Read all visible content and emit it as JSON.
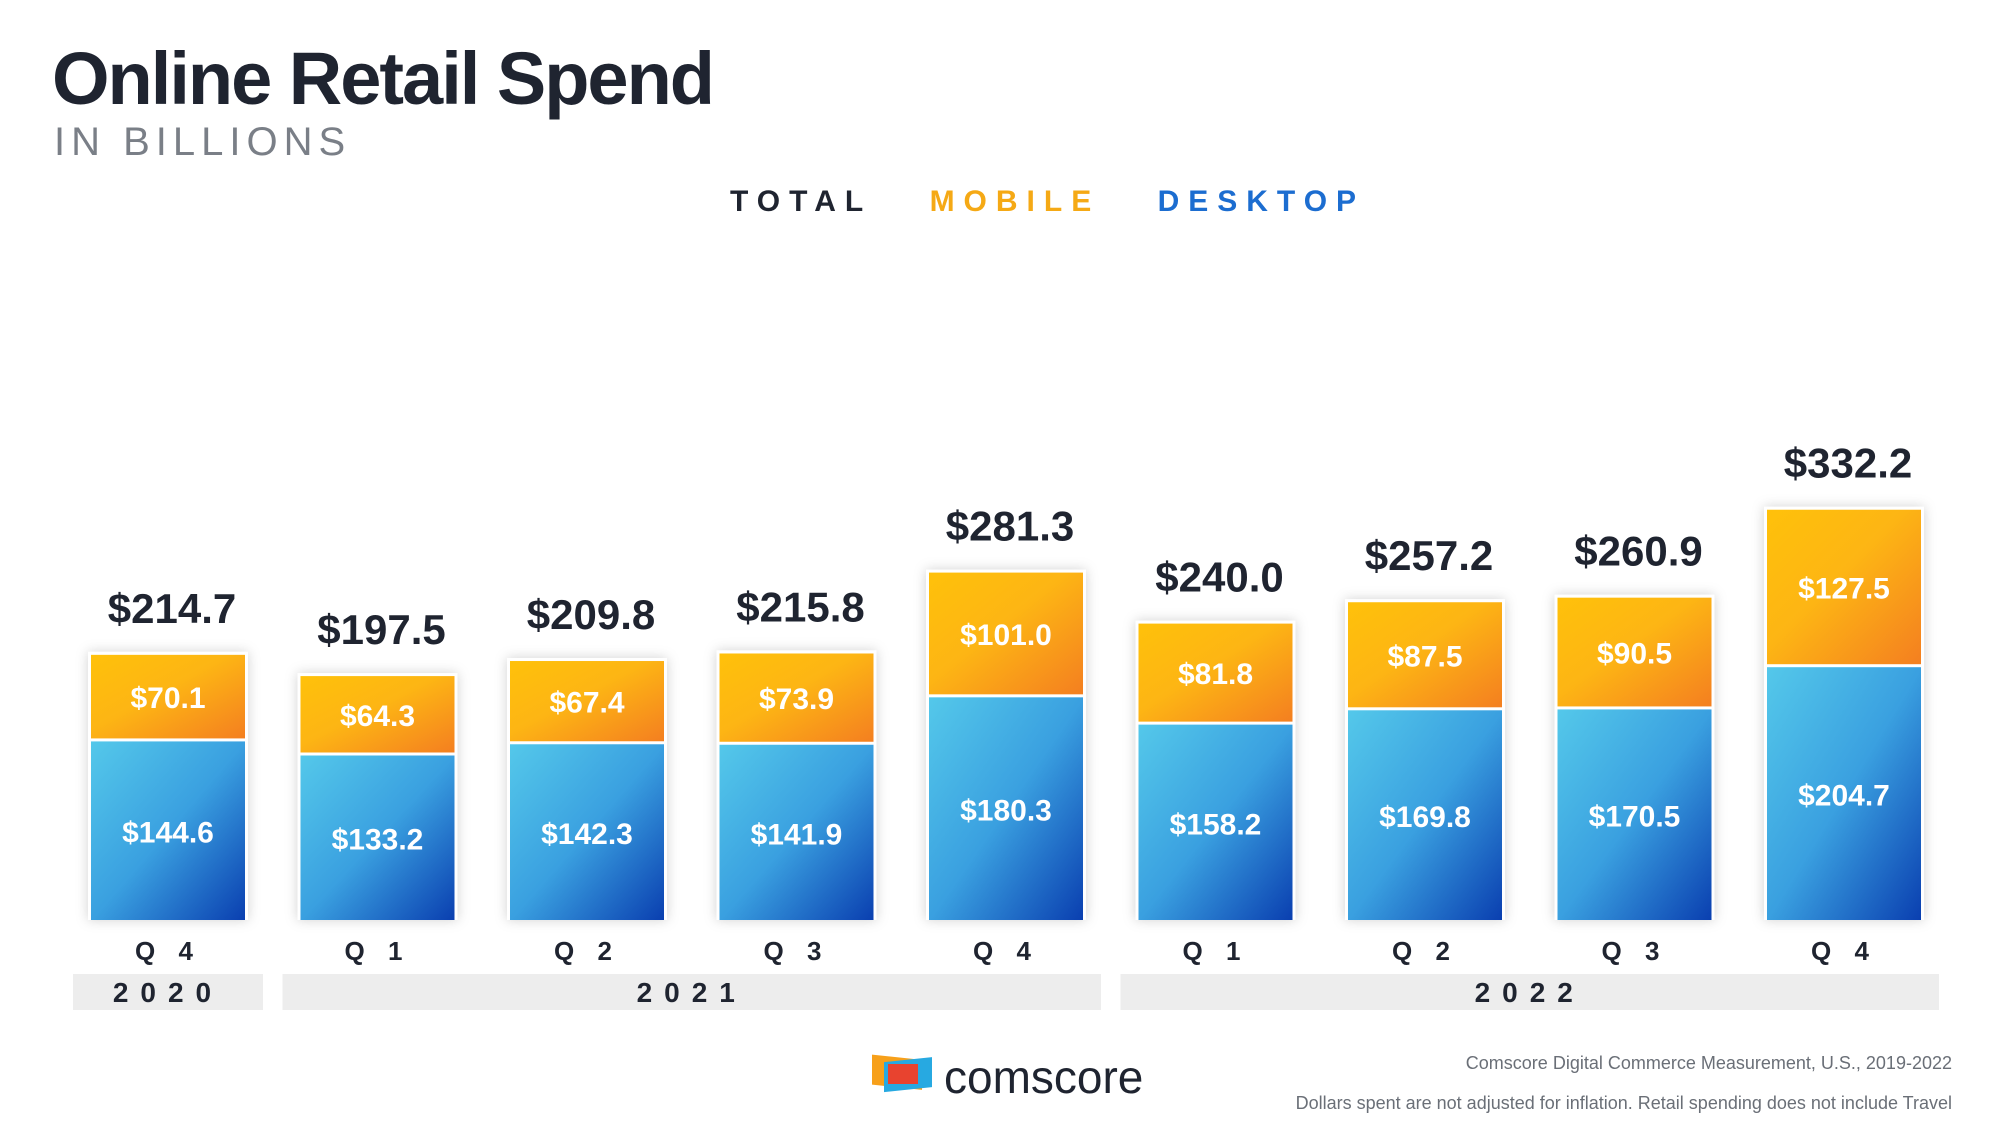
{
  "title": "Online Retail Spend",
  "subtitle": "IN BILLIONS",
  "legend": {
    "total": "TOTAL",
    "mobile": "MOBILE",
    "desktop": "DESKTOP"
  },
  "colors": {
    "mobile_top": "#ffc10a",
    "mobile_bottom": "#f47f20",
    "desktop_top": "#54c8ea",
    "desktop_bottom": "#0a3fb0",
    "total_label": "#1f2430",
    "year_band": "#ededed"
  },
  "chart_data": {
    "type": "bar",
    "stacked": true,
    "title": "Online Retail Spend",
    "subtitle": "IN BILLIONS",
    "ylim": [
      0,
      340
    ],
    "categories": [
      "Q 4",
      "Q 1",
      "Q 2",
      "Q 3",
      "Q 4",
      "Q 1",
      "Q 2",
      "Q 3",
      "Q 4"
    ],
    "years": [
      {
        "label": "2020",
        "quarters": 1
      },
      {
        "label": "2021",
        "quarters": 4
      },
      {
        "label": "2022",
        "quarters": 4
      }
    ],
    "series": [
      {
        "name": "DESKTOP",
        "values": [
          144.6,
          133.2,
          142.3,
          141.9,
          180.3,
          158.2,
          169.8,
          170.5,
          204.7
        ],
        "labels": [
          "$144.6",
          "$133.2",
          "$142.3",
          "$141.9",
          "$180.3",
          "$158.2",
          "$169.8",
          "$170.5",
          "$204.7"
        ]
      },
      {
        "name": "MOBILE",
        "values": [
          70.1,
          64.3,
          67.4,
          73.9,
          101.0,
          81.8,
          87.5,
          90.5,
          127.5
        ],
        "labels": [
          "$70.1",
          "$64.3",
          "$67.4",
          "$73.9",
          "$101.0",
          "$81.8",
          "$87.5",
          "$90.5",
          "$127.5"
        ]
      }
    ],
    "totals": [
      214.7,
      197.5,
      209.8,
      215.8,
      281.3,
      240.0,
      257.2,
      260.9,
      332.2
    ],
    "total_labels": [
      "$214.7",
      "$197.5",
      "$209.8",
      "$215.8",
      "$281.3",
      "$240.0",
      "$257.2",
      "$260.9",
      "$332.2"
    ]
  },
  "footer": {
    "source": "Comscore Digital Commerce Measurement, U.S., 2019-2022",
    "note": "Dollars spent are not adjusted for inflation. Retail spending does not include Travel",
    "brand": "comscore"
  }
}
